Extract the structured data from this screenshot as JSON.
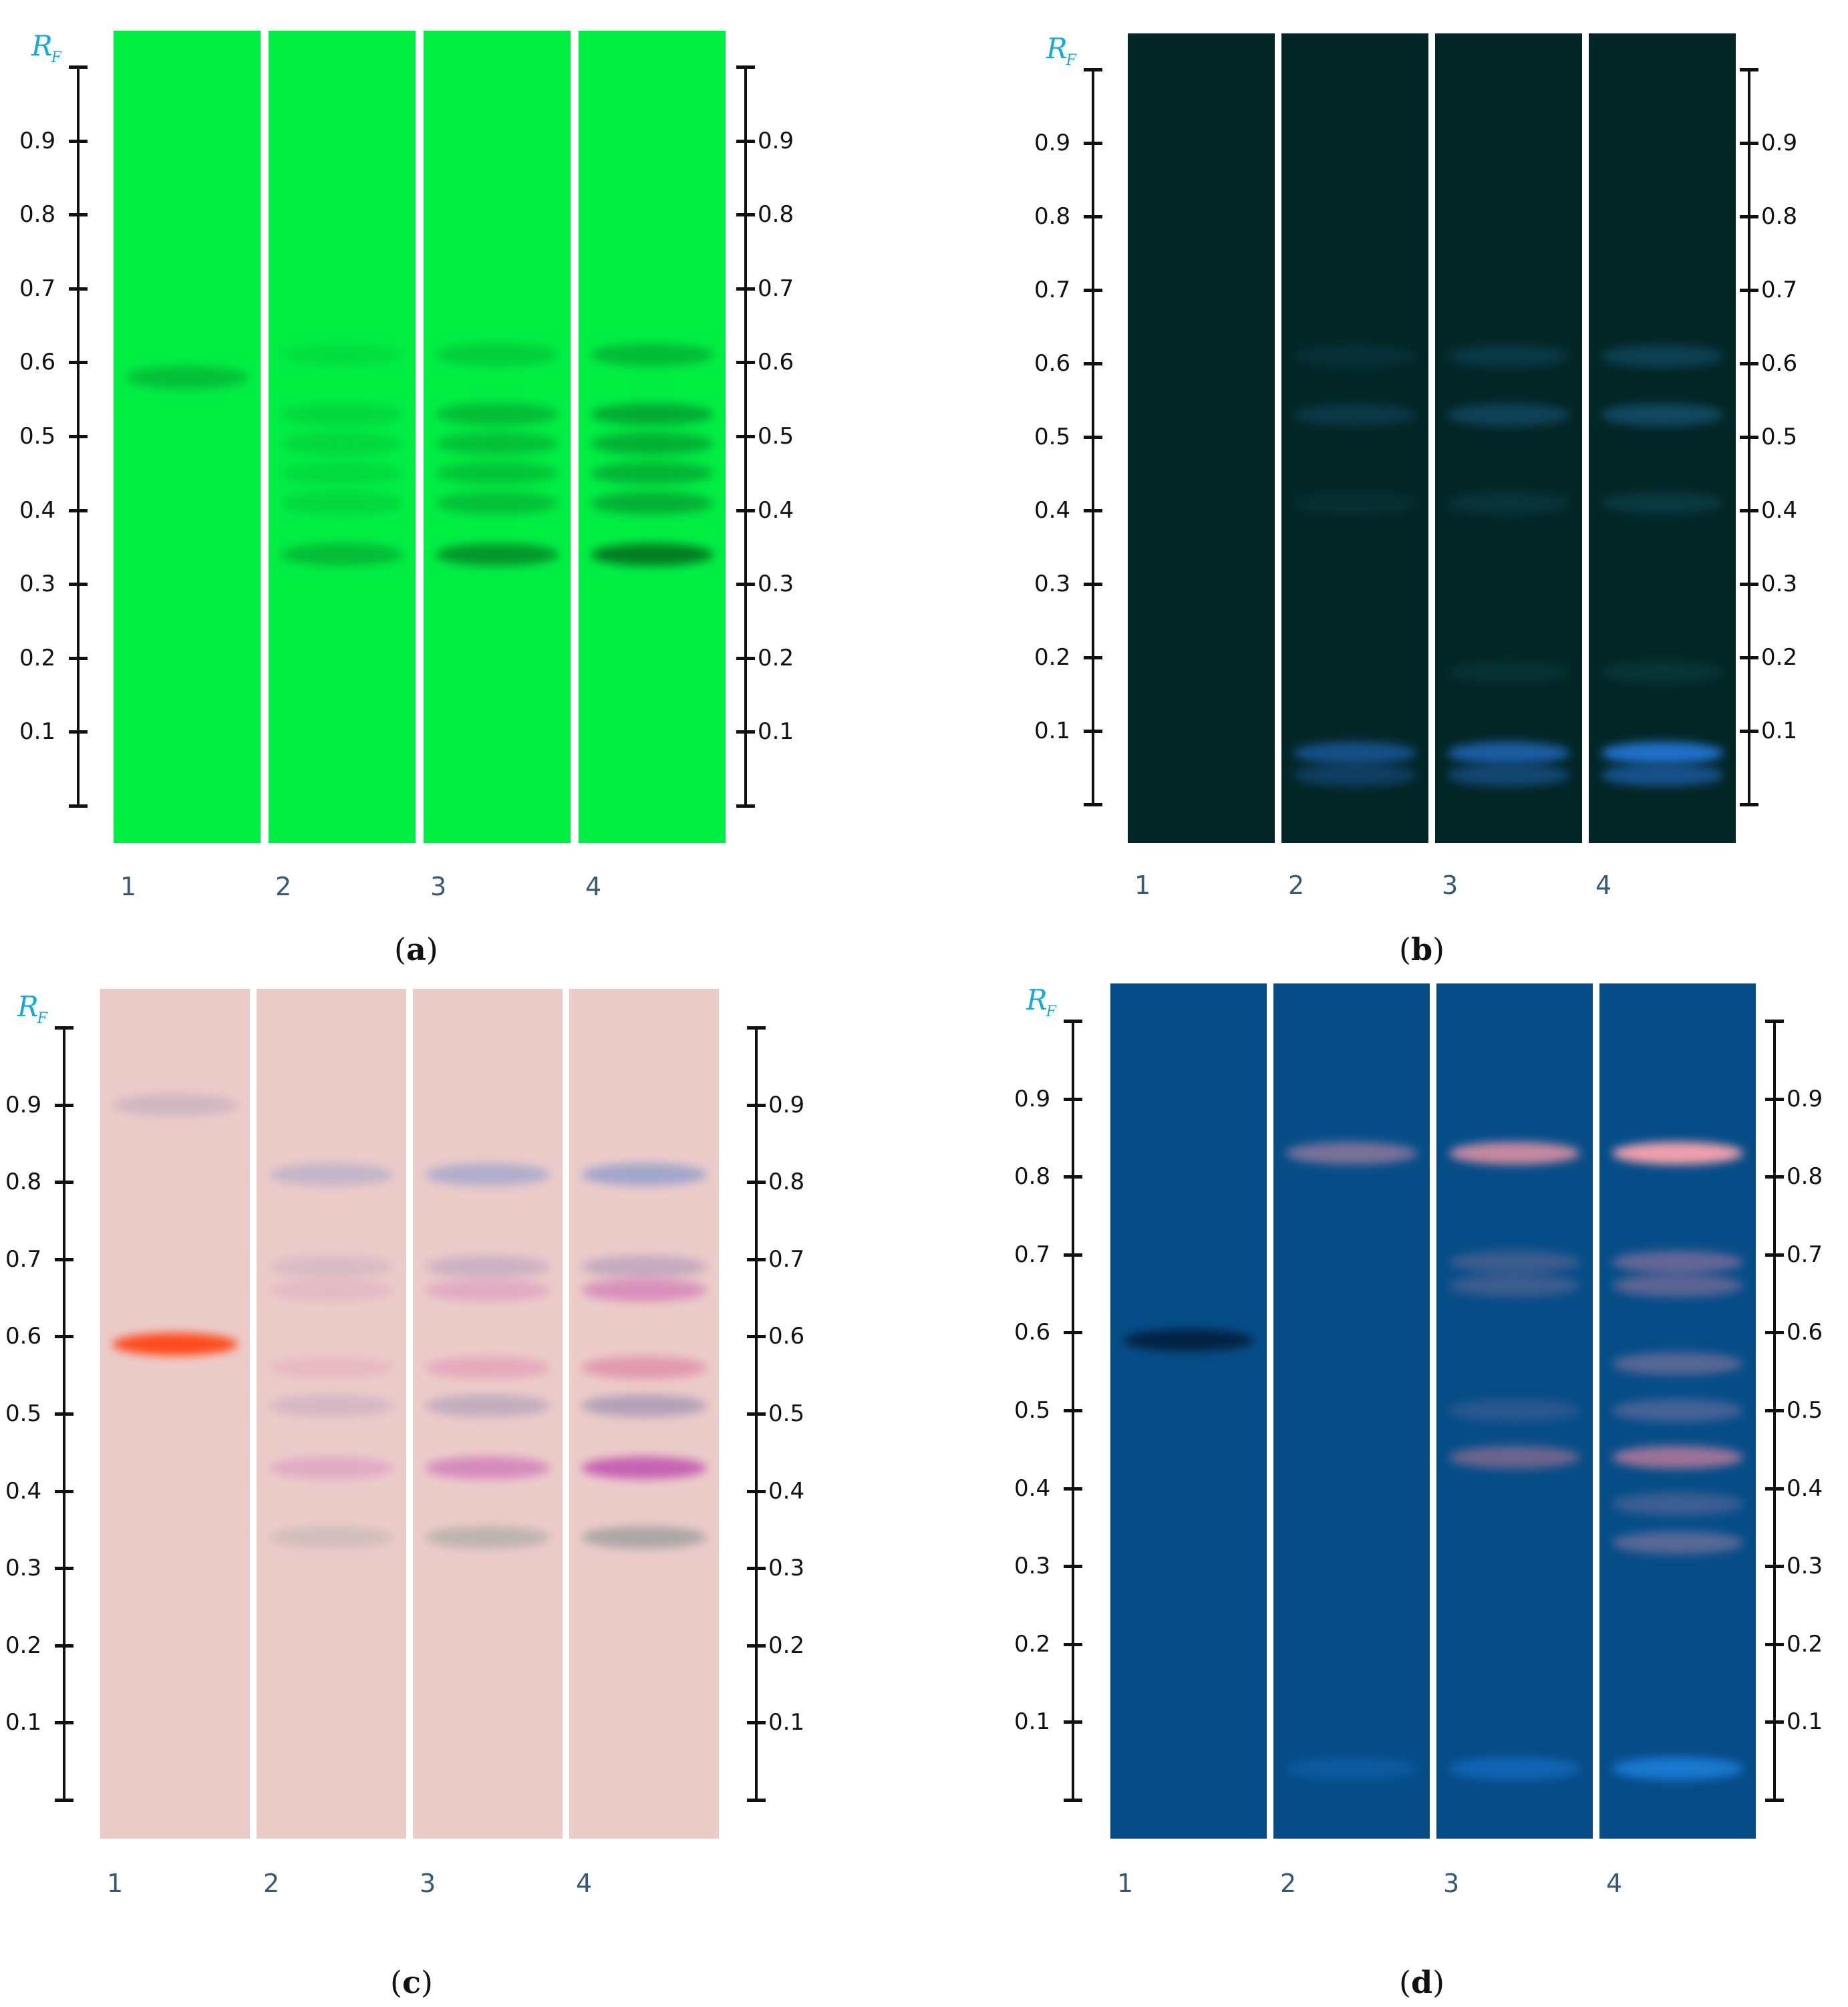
{
  "rf_axis": {
    "symbol": "R",
    "subscript": "F",
    "ticks": [
      "0.1",
      "0.2",
      "0.3",
      "0.4",
      "0.5",
      "0.6",
      "0.7",
      "0.8",
      "0.9"
    ]
  },
  "lane_labels": [
    "1",
    "2",
    "3",
    "4"
  ],
  "panels": [
    {
      "id": "a",
      "caption_open": "(",
      "caption_letter": "a",
      "caption_close": ")",
      "background": "#00ee44",
      "bands": [
        {
          "lane": 0,
          "rf": 0.58,
          "color": "#0a9a30",
          "intensity": 0.55
        },
        {
          "lane": 1,
          "rf": 0.34,
          "color": "#06952a",
          "intensity": 0.55
        },
        {
          "lane": 1,
          "rf": 0.41,
          "color": "#08a532",
          "intensity": 0.3
        },
        {
          "lane": 1,
          "rf": 0.45,
          "color": "#08a532",
          "intensity": 0.25
        },
        {
          "lane": 1,
          "rf": 0.49,
          "color": "#08a532",
          "intensity": 0.3
        },
        {
          "lane": 1,
          "rf": 0.53,
          "color": "#08a532",
          "intensity": 0.3
        },
        {
          "lane": 1,
          "rf": 0.61,
          "color": "#08a532",
          "intensity": 0.2
        },
        {
          "lane": 2,
          "rf": 0.34,
          "color": "#047a22",
          "intensity": 0.75
        },
        {
          "lane": 2,
          "rf": 0.41,
          "color": "#06952a",
          "intensity": 0.5
        },
        {
          "lane": 2,
          "rf": 0.45,
          "color": "#06952a",
          "intensity": 0.45
        },
        {
          "lane": 2,
          "rf": 0.49,
          "color": "#06952a",
          "intensity": 0.5
        },
        {
          "lane": 2,
          "rf": 0.53,
          "color": "#06952a",
          "intensity": 0.55
        },
        {
          "lane": 2,
          "rf": 0.61,
          "color": "#06952a",
          "intensity": 0.35
        },
        {
          "lane": 3,
          "rf": 0.34,
          "color": "#036a1c",
          "intensity": 0.85
        },
        {
          "lane": 3,
          "rf": 0.41,
          "color": "#05882a",
          "intensity": 0.6
        },
        {
          "lane": 3,
          "rf": 0.45,
          "color": "#05882a",
          "intensity": 0.55
        },
        {
          "lane": 3,
          "rf": 0.49,
          "color": "#05882a",
          "intensity": 0.6
        },
        {
          "lane": 3,
          "rf": 0.53,
          "color": "#05882a",
          "intensity": 0.65
        },
        {
          "lane": 3,
          "rf": 0.61,
          "color": "#05882a",
          "intensity": 0.5
        }
      ]
    },
    {
      "id": "b",
      "caption_open": "(",
      "caption_letter": "b",
      "caption_close": ")",
      "background": "#022626",
      "bands": [
        {
          "lane": 1,
          "rf": 0.07,
          "color": "#1a5aa0",
          "intensity": 0.8
        },
        {
          "lane": 1,
          "rf": 0.04,
          "color": "#1a4e8a",
          "intensity": 0.6
        },
        {
          "lane": 1,
          "rf": 0.53,
          "color": "#164e6e",
          "intensity": 0.45
        },
        {
          "lane": 1,
          "rf": 0.61,
          "color": "#164e6e",
          "intensity": 0.25
        },
        {
          "lane": 1,
          "rf": 0.41,
          "color": "#124656",
          "intensity": 0.3
        },
        {
          "lane": 2,
          "rf": 0.07,
          "color": "#1e62b0",
          "intensity": 0.9
        },
        {
          "lane": 2,
          "rf": 0.04,
          "color": "#1a5494",
          "intensity": 0.7
        },
        {
          "lane": 2,
          "rf": 0.53,
          "color": "#1a5a80",
          "intensity": 0.55
        },
        {
          "lane": 2,
          "rf": 0.61,
          "color": "#1a5a80",
          "intensity": 0.35
        },
        {
          "lane": 2,
          "rf": 0.41,
          "color": "#144e62",
          "intensity": 0.35
        },
        {
          "lane": 2,
          "rf": 0.18,
          "color": "#124a52",
          "intensity": 0.3
        },
        {
          "lane": 3,
          "rf": 0.07,
          "color": "#2070c8",
          "intensity": 1.0
        },
        {
          "lane": 3,
          "rf": 0.04,
          "color": "#1c5ca4",
          "intensity": 0.8
        },
        {
          "lane": 3,
          "rf": 0.53,
          "color": "#1c6088",
          "intensity": 0.6
        },
        {
          "lane": 3,
          "rf": 0.61,
          "color": "#1c6088",
          "intensity": 0.45
        },
        {
          "lane": 3,
          "rf": 0.41,
          "color": "#165468",
          "intensity": 0.4
        },
        {
          "lane": 3,
          "rf": 0.18,
          "color": "#145058",
          "intensity": 0.35
        }
      ]
    },
    {
      "id": "c",
      "caption_open": "(",
      "caption_letter": "c",
      "caption_close": ")",
      "background": "#ecccc9",
      "bands": [
        {
          "lane": 0,
          "rf": 0.59,
          "color": "#ff4a1c",
          "intensity": 1.0
        },
        {
          "lane": 0,
          "rf": 0.9,
          "color": "#b8a6bc",
          "intensity": 0.55
        },
        {
          "lane": 1,
          "rf": 0.81,
          "color": "#a8a6c8",
          "intensity": 0.6
        },
        {
          "lane": 1,
          "rf": 0.69,
          "color": "#c4a8c0",
          "intensity": 0.45
        },
        {
          "lane": 1,
          "rf": 0.66,
          "color": "#d8a0c0",
          "intensity": 0.4
        },
        {
          "lane": 1,
          "rf": 0.56,
          "color": "#e4a4bc",
          "intensity": 0.45
        },
        {
          "lane": 1,
          "rf": 0.51,
          "color": "#b8a0bc",
          "intensity": 0.45
        },
        {
          "lane": 1,
          "rf": 0.43,
          "color": "#d890c0",
          "intensity": 0.55
        },
        {
          "lane": 1,
          "rf": 0.34,
          "color": "#b8b0b0",
          "intensity": 0.5
        },
        {
          "lane": 2,
          "rf": 0.81,
          "color": "#9ca4cc",
          "intensity": 0.75
        },
        {
          "lane": 2,
          "rf": 0.69,
          "color": "#b8a0c0",
          "intensity": 0.6
        },
        {
          "lane": 2,
          "rf": 0.66,
          "color": "#d890c0",
          "intensity": 0.55
        },
        {
          "lane": 2,
          "rf": 0.56,
          "color": "#e094b4",
          "intensity": 0.6
        },
        {
          "lane": 2,
          "rf": 0.51,
          "color": "#a898b8",
          "intensity": 0.6
        },
        {
          "lane": 2,
          "rf": 0.43,
          "color": "#cc70b8",
          "intensity": 0.7
        },
        {
          "lane": 2,
          "rf": 0.34,
          "color": "#a0a4a0",
          "intensity": 0.6
        },
        {
          "lane": 3,
          "rf": 0.81,
          "color": "#94a0cc",
          "intensity": 0.85
        },
        {
          "lane": 3,
          "rf": 0.69,
          "color": "#b098bc",
          "intensity": 0.65
        },
        {
          "lane": 3,
          "rf": 0.66,
          "color": "#cc70b4",
          "intensity": 0.65
        },
        {
          "lane": 3,
          "rf": 0.56,
          "color": "#dc84a4",
          "intensity": 0.7
        },
        {
          "lane": 3,
          "rf": 0.51,
          "color": "#9c90b0",
          "intensity": 0.7
        },
        {
          "lane": 3,
          "rf": 0.43,
          "color": "#c050b0",
          "intensity": 0.85
        },
        {
          "lane": 3,
          "rf": 0.34,
          "color": "#909898",
          "intensity": 0.7
        }
      ]
    },
    {
      "id": "d",
      "caption_open": "(",
      "caption_letter": "d",
      "caption_close": ")",
      "background": "#064d88",
      "bands": [
        {
          "lane": 0,
          "rf": 0.59,
          "color": "#031e3c",
          "intensity": 0.9
        },
        {
          "lane": 1,
          "rf": 0.83,
          "color": "#d890a4",
          "intensity": 0.55
        },
        {
          "lane": 1,
          "rf": 0.04,
          "color": "#1670c8",
          "intensity": 0.35
        },
        {
          "lane": 2,
          "rf": 0.83,
          "color": "#e894a4",
          "intensity": 0.85
        },
        {
          "lane": 2,
          "rf": 0.69,
          "color": "#a07898",
          "intensity": 0.35
        },
        {
          "lane": 2,
          "rf": 0.66,
          "color": "#a07898",
          "intensity": 0.35
        },
        {
          "lane": 2,
          "rf": 0.5,
          "color": "#7c70a0",
          "intensity": 0.3
        },
        {
          "lane": 2,
          "rf": 0.44,
          "color": "#c07890",
          "intensity": 0.55
        },
        {
          "lane": 2,
          "rf": 0.04,
          "color": "#1a78d8",
          "intensity": 0.55
        },
        {
          "lane": 3,
          "rf": 0.83,
          "color": "#f0a0ac",
          "intensity": 1.0
        },
        {
          "lane": 3,
          "rf": 0.69,
          "color": "#b07ca0",
          "intensity": 0.55
        },
        {
          "lane": 3,
          "rf": 0.66,
          "color": "#b07ca0",
          "intensity": 0.5
        },
        {
          "lane": 3,
          "rf": 0.56,
          "color": "#9a7ca0",
          "intensity": 0.55
        },
        {
          "lane": 3,
          "rf": 0.5,
          "color": "#8478a4",
          "intensity": 0.5
        },
        {
          "lane": 3,
          "rf": 0.44,
          "color": "#d0809c",
          "intensity": 0.75
        },
        {
          "lane": 3,
          "rf": 0.38,
          "color": "#8c7aa4",
          "intensity": 0.4
        },
        {
          "lane": 3,
          "rf": 0.33,
          "color": "#a884a4",
          "intensity": 0.5
        },
        {
          "lane": 3,
          "rf": 0.04,
          "color": "#2088e8",
          "intensity": 0.75
        }
      ]
    }
  ]
}
